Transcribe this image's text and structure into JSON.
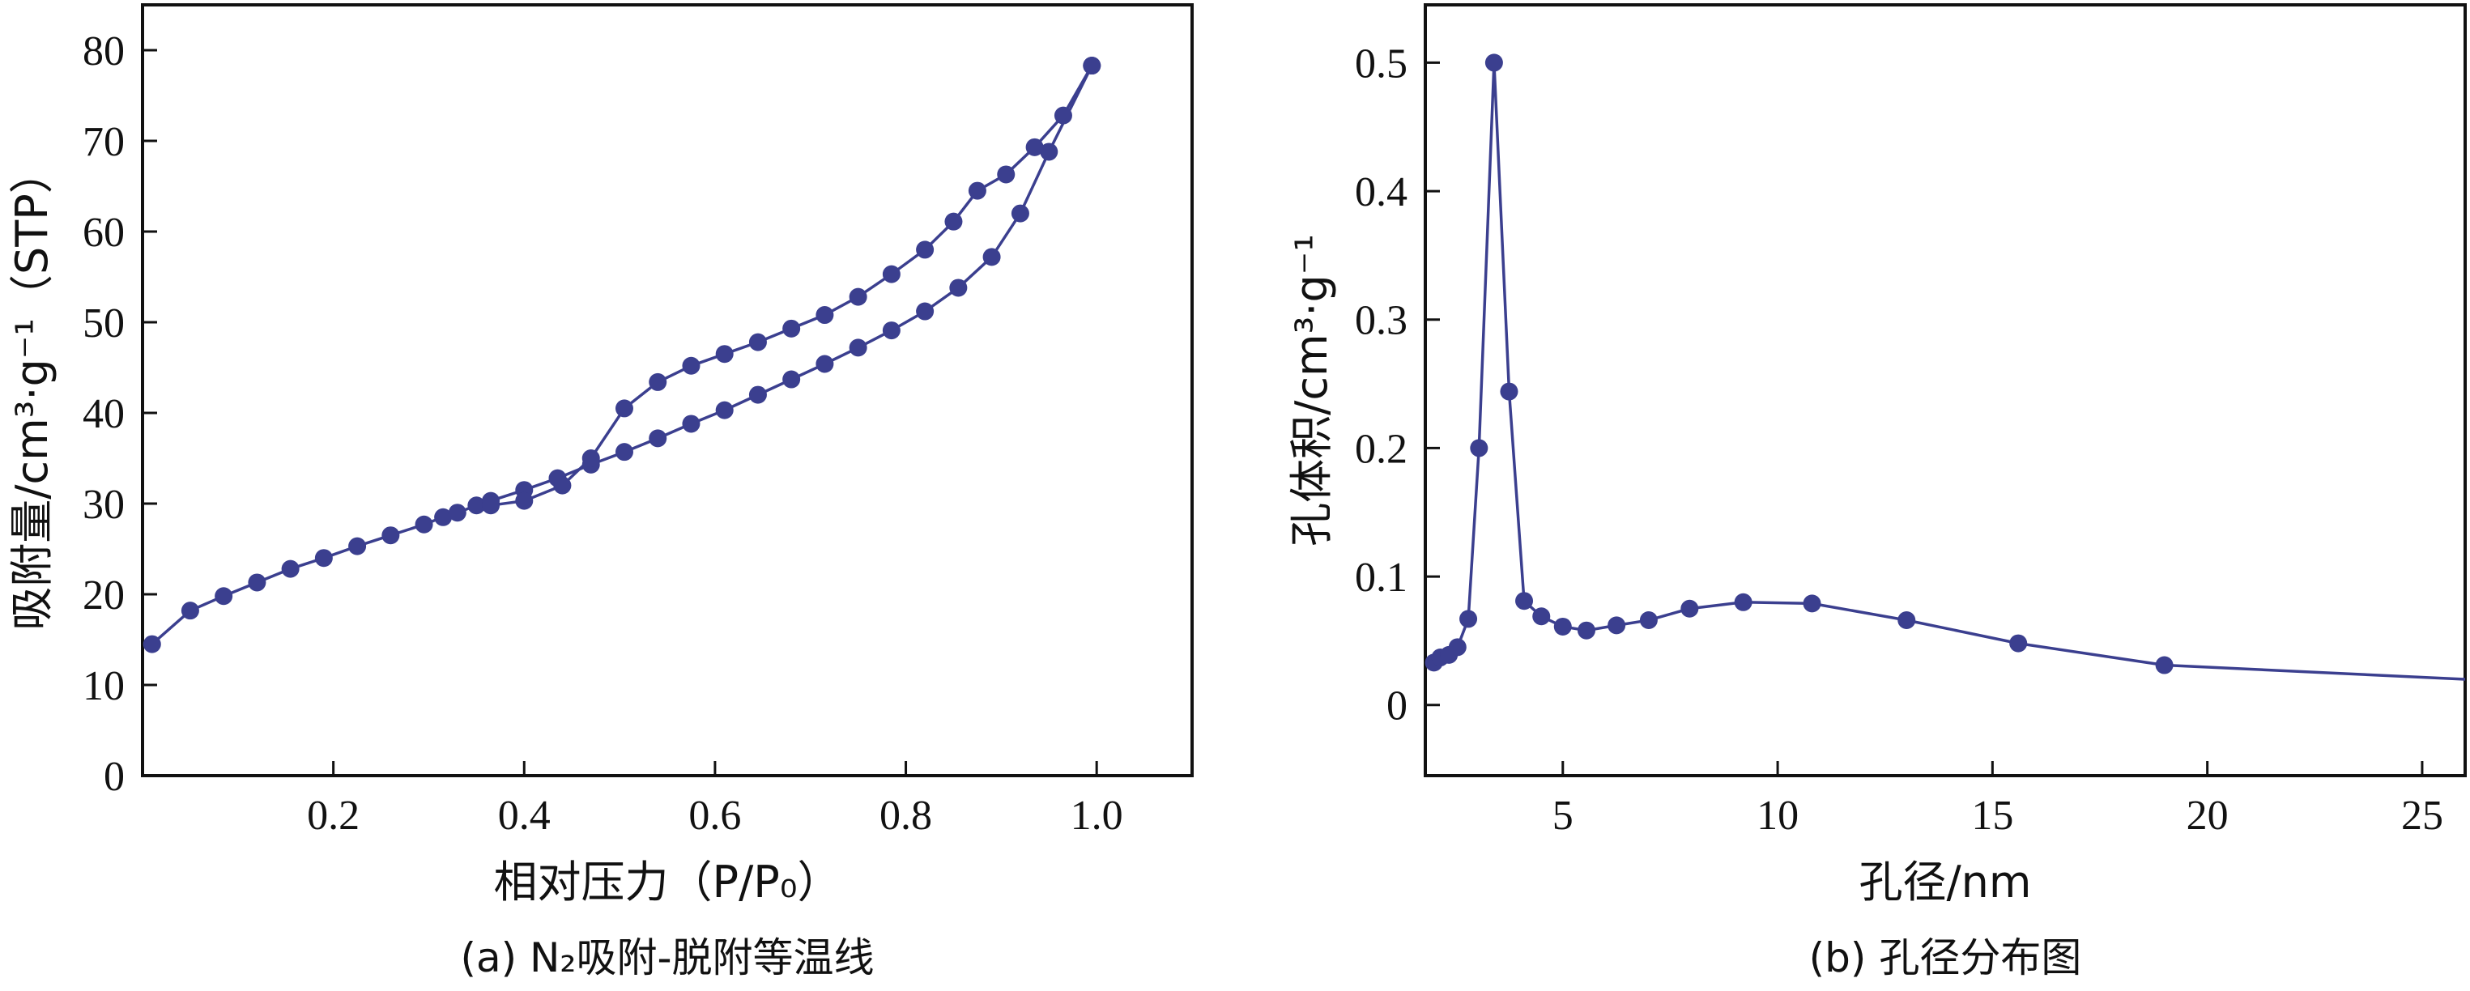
{
  "chart_data": [
    {
      "type": "line",
      "panel": "a",
      "caption": "(a) N₂吸附-脱附等温线",
      "xlabel": "相对压力（P/P₀）",
      "ylabel": "吸附量/cm³·g⁻¹（STP）",
      "xlim": [
        0.0,
        1.1
      ],
      "ylim": [
        0,
        85
      ],
      "xticks": [
        0.2,
        0.4,
        0.6,
        0.8,
        1.0
      ],
      "xtick_labels": [
        "0.2",
        "0.4",
        "0.6",
        "0.8",
        "1.0"
      ],
      "yticks": [
        0,
        10,
        20,
        30,
        40,
        50,
        60,
        70,
        80
      ],
      "ytick_labels": [
        "0",
        "10",
        "20",
        "30",
        "40",
        "50",
        "60",
        "70",
        "80"
      ],
      "grid": false,
      "color": "#3b3f8f",
      "series": [
        {
          "x": [
            0.01,
            0.05,
            0.085,
            0.12,
            0.155,
            0.19,
            0.225,
            0.26,
            0.295,
            0.315,
            0.33,
            0.35,
            0.365,
            0.4,
            0.435,
            0.47,
            0.505,
            0.54,
            0.575,
            0.61,
            0.645,
            0.68,
            0.715,
            0.75,
            0.785,
            0.82,
            0.855,
            0.89,
            0.92,
            0.95,
            0.995
          ],
          "y": [
            14.5,
            18.2,
            19.8,
            21.3,
            22.8,
            24.0,
            25.3,
            26.5,
            27.7,
            28.5,
            29.0,
            29.8,
            30.3,
            31.5,
            32.8,
            34.3,
            35.7,
            37.2,
            38.8,
            40.3,
            42.0,
            43.7,
            45.4,
            47.2,
            49.1,
            51.2,
            53.8,
            57.2,
            62.0,
            68.8,
            78.3
          ]
        },
        {
          "x": [
            0.995,
            0.965,
            0.935,
            0.905,
            0.875,
            0.85,
            0.82,
            0.785,
            0.75,
            0.715,
            0.68,
            0.645,
            0.61,
            0.575,
            0.54,
            0.505,
            0.47,
            0.44,
            0.4,
            0.365
          ],
          "y": [
            78.3,
            72.8,
            69.3,
            66.3,
            64.5,
            61.1,
            58.0,
            55.3,
            52.8,
            50.8,
            49.3,
            47.8,
            46.5,
            45.2,
            43.4,
            40.5,
            35.0,
            32.0,
            30.3,
            29.8
          ]
        }
      ]
    },
    {
      "type": "line",
      "panel": "b",
      "caption": "(b) 孔径分布图",
      "xlabel": "孔径/nm",
      "ylabel": "孔体积/cm³·g⁻¹",
      "xlim": [
        1.8,
        26
      ],
      "ylim": [
        -0.055,
        0.545
      ],
      "xticks": [
        5,
        10,
        15,
        20,
        25
      ],
      "xtick_labels": [
        "5",
        "10",
        "15",
        "20",
        "25"
      ],
      "yticks": [
        0,
        0.1,
        0.2,
        0.3,
        0.4,
        0.5
      ],
      "ytick_labels": [
        "0",
        "0.1",
        "0.2",
        "0.3",
        "0.4",
        "0.5"
      ],
      "grid": false,
      "color": "#3b3f8f",
      "series": [
        {
          "x": [
            2.0,
            2.15,
            2.35,
            2.55,
            2.8,
            3.05,
            3.4,
            3.75,
            4.1,
            4.5,
            5.0,
            5.55,
            6.25,
            7.0,
            7.95,
            9.2,
            10.8,
            13.0,
            15.6,
            19.0,
            26.0
          ],
          "y": [
            0.033,
            0.037,
            0.039,
            0.045,
            0.067,
            0.2,
            0.5,
            0.244,
            0.081,
            0.069,
            0.061,
            0.058,
            0.062,
            0.066,
            0.075,
            0.08,
            0.079,
            0.066,
            0.048,
            0.031,
            0.02
          ],
          "markers": [
            true,
            true,
            true,
            true,
            true,
            true,
            true,
            true,
            true,
            true,
            true,
            true,
            true,
            true,
            true,
            true,
            true,
            true,
            true,
            true,
            false
          ]
        }
      ]
    }
  ]
}
